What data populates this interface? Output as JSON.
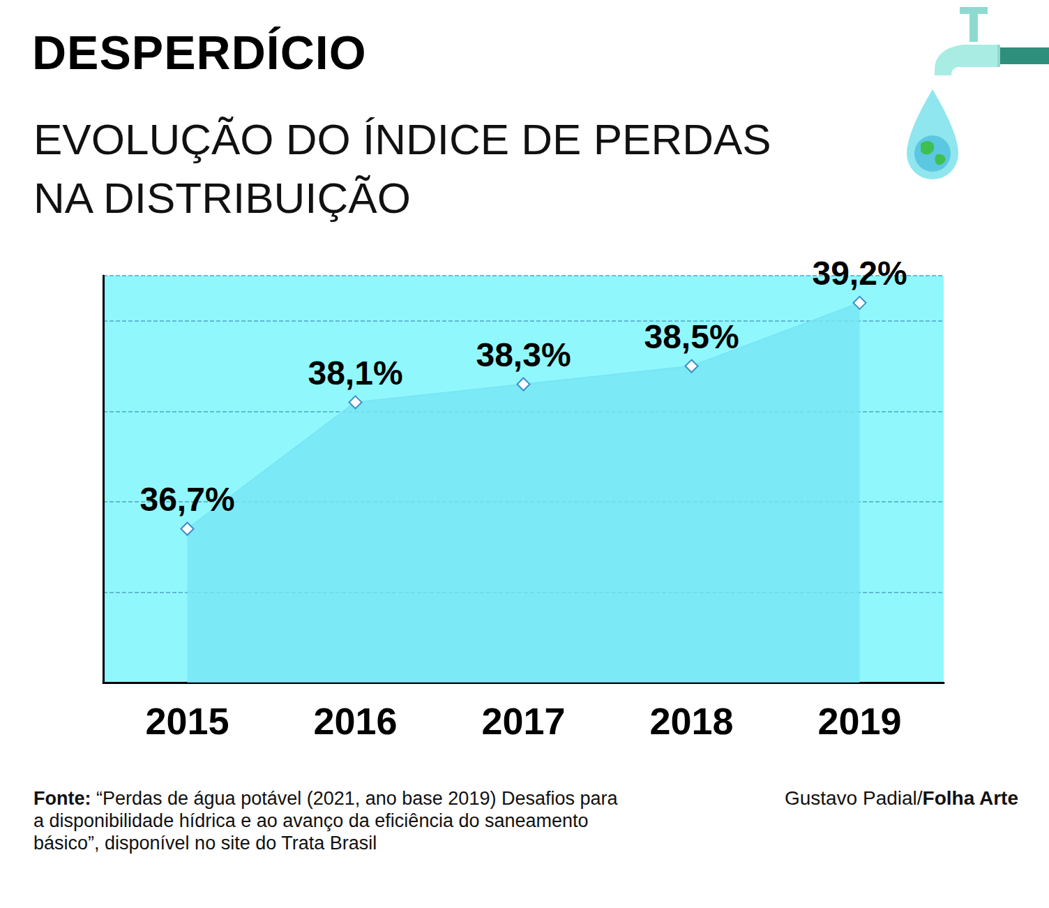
{
  "chart_data": {
    "type": "line",
    "title": "DESPERDÍCIO",
    "subtitle": [
      "EVOLUÇÃO DO ÍNDICE DE PERDAS",
      "NA DISTRIBUIÇÃO"
    ],
    "categories": [
      "2015",
      "2016",
      "2017",
      "2018",
      "2019"
    ],
    "values": [
      36.7,
      38.1,
      38.3,
      38.5,
      39.2
    ],
    "value_labels": [
      "36,7%",
      "38,1%",
      "38,3%",
      "38,5%",
      "39,2%"
    ],
    "color": "#78e5f4",
    "ylim": [
      35,
      39.5
    ],
    "yticks": [
      35,
      36,
      37,
      38,
      39
    ],
    "grid": true,
    "data_labels": true,
    "tick_labels": "x",
    "marker": "diamond",
    "source_label": "Fonte:",
    "source": "“Perdas de água potável (2021, ano base 2019) Desafios para a disponibilidade hídrica e ao avanço da eficiência do saneamento básico”, disponível no site do Trata Brasil",
    "credit": "Gustavo Padial/Folha Arte"
  }
}
